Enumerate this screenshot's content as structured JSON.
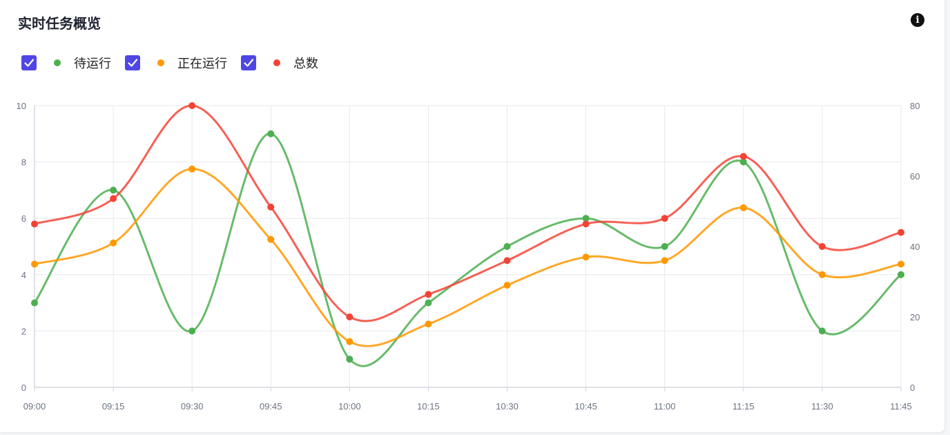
{
  "header": {
    "title": "实时任务概览",
    "info_icon": "info-icon"
  },
  "legend": [
    {
      "label": "待运行",
      "color": "#4caf50",
      "checked": true
    },
    {
      "label": "正在运行",
      "color": "#ff9800",
      "checked": true
    },
    {
      "label": "总数",
      "color": "#f44336",
      "checked": true
    }
  ],
  "chart_data": {
    "type": "line",
    "title": "实时任务概览",
    "x": [
      "09:00",
      "09:15",
      "09:30",
      "09:45",
      "10:00",
      "10:15",
      "10:30",
      "10:45",
      "11:00",
      "11:15",
      "11:30",
      "11:45"
    ],
    "y_left_ticks": [
      "0",
      "2",
      "4",
      "6",
      "8",
      "10"
    ],
    "y_right_ticks": [
      "0",
      "20",
      "40",
      "60",
      "80"
    ],
    "ylim_left": [
      0,
      10
    ],
    "ylim_right": [
      0,
      80
    ],
    "grid": true,
    "legend_position": "top-left",
    "series": [
      {
        "name": "待运行",
        "axis": "left",
        "color": "#4caf50",
        "values": [
          3,
          7,
          2,
          9,
          1,
          3,
          5,
          6,
          5,
          8,
          2,
          4
        ]
      },
      {
        "name": "正在运行",
        "axis": "right",
        "color": "#ff9800",
        "values": [
          35,
          41,
          62,
          42,
          13,
          18,
          29,
          37,
          36,
          51,
          32,
          35
        ]
      },
      {
        "name": "总数",
        "axis": "left",
        "color": "#f44336",
        "values": [
          5.8,
          6.7,
          10,
          6.4,
          2.5,
          3.3,
          4.5,
          5.8,
          6.0,
          8.2,
          5.0,
          5.5
        ]
      }
    ]
  }
}
